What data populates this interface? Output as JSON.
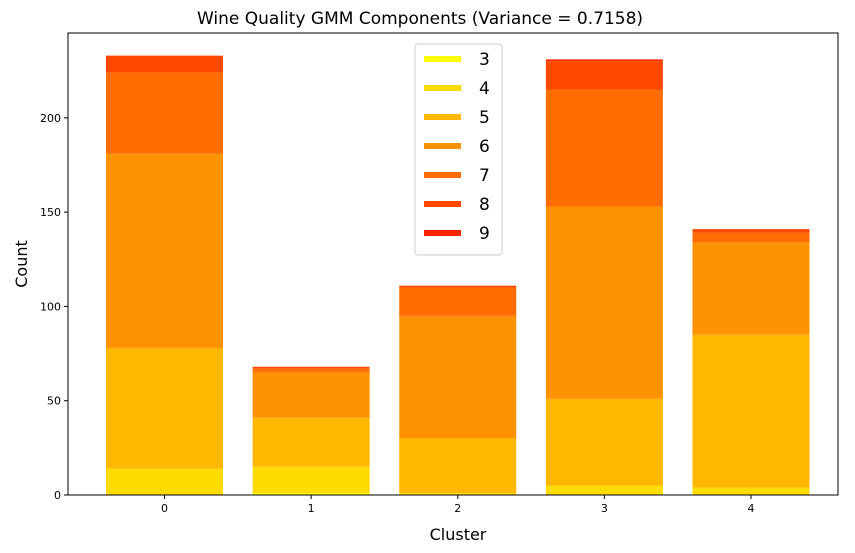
{
  "chart_data": {
    "type": "bar",
    "stacked": true,
    "title": "Wine Quality GMM Components (Variance = 0.7158)",
    "xlabel": "Cluster",
    "ylabel": "Count",
    "categories": [
      "0",
      "1",
      "2",
      "3",
      "4"
    ],
    "yticks": [
      0,
      50,
      100,
      150,
      200
    ],
    "ylim": [
      0,
      245
    ],
    "legend_position": "top-center",
    "series": [
      {
        "name": "3",
        "color": "#ffff00",
        "values": [
          0,
          1,
          0,
          0,
          0
        ]
      },
      {
        "name": "4",
        "color": "#ffdb00",
        "values": [
          14,
          14,
          1,
          5,
          4
        ]
      },
      {
        "name": "5",
        "color": "#ffb700",
        "values": [
          64,
          26,
          29,
          46,
          81
        ]
      },
      {
        "name": "6",
        "color": "#ff9200",
        "values": [
          103,
          24,
          65,
          102,
          49
        ]
      },
      {
        "name": "7",
        "color": "#ff6d00",
        "values": [
          43,
          2,
          15,
          62,
          5
        ]
      },
      {
        "name": "8",
        "color": "#ff4900",
        "values": [
          9,
          1,
          1,
          15,
          2
        ]
      },
      {
        "name": "9",
        "color": "#ff2400",
        "values": [
          0,
          0,
          0,
          1,
          0
        ]
      }
    ]
  }
}
